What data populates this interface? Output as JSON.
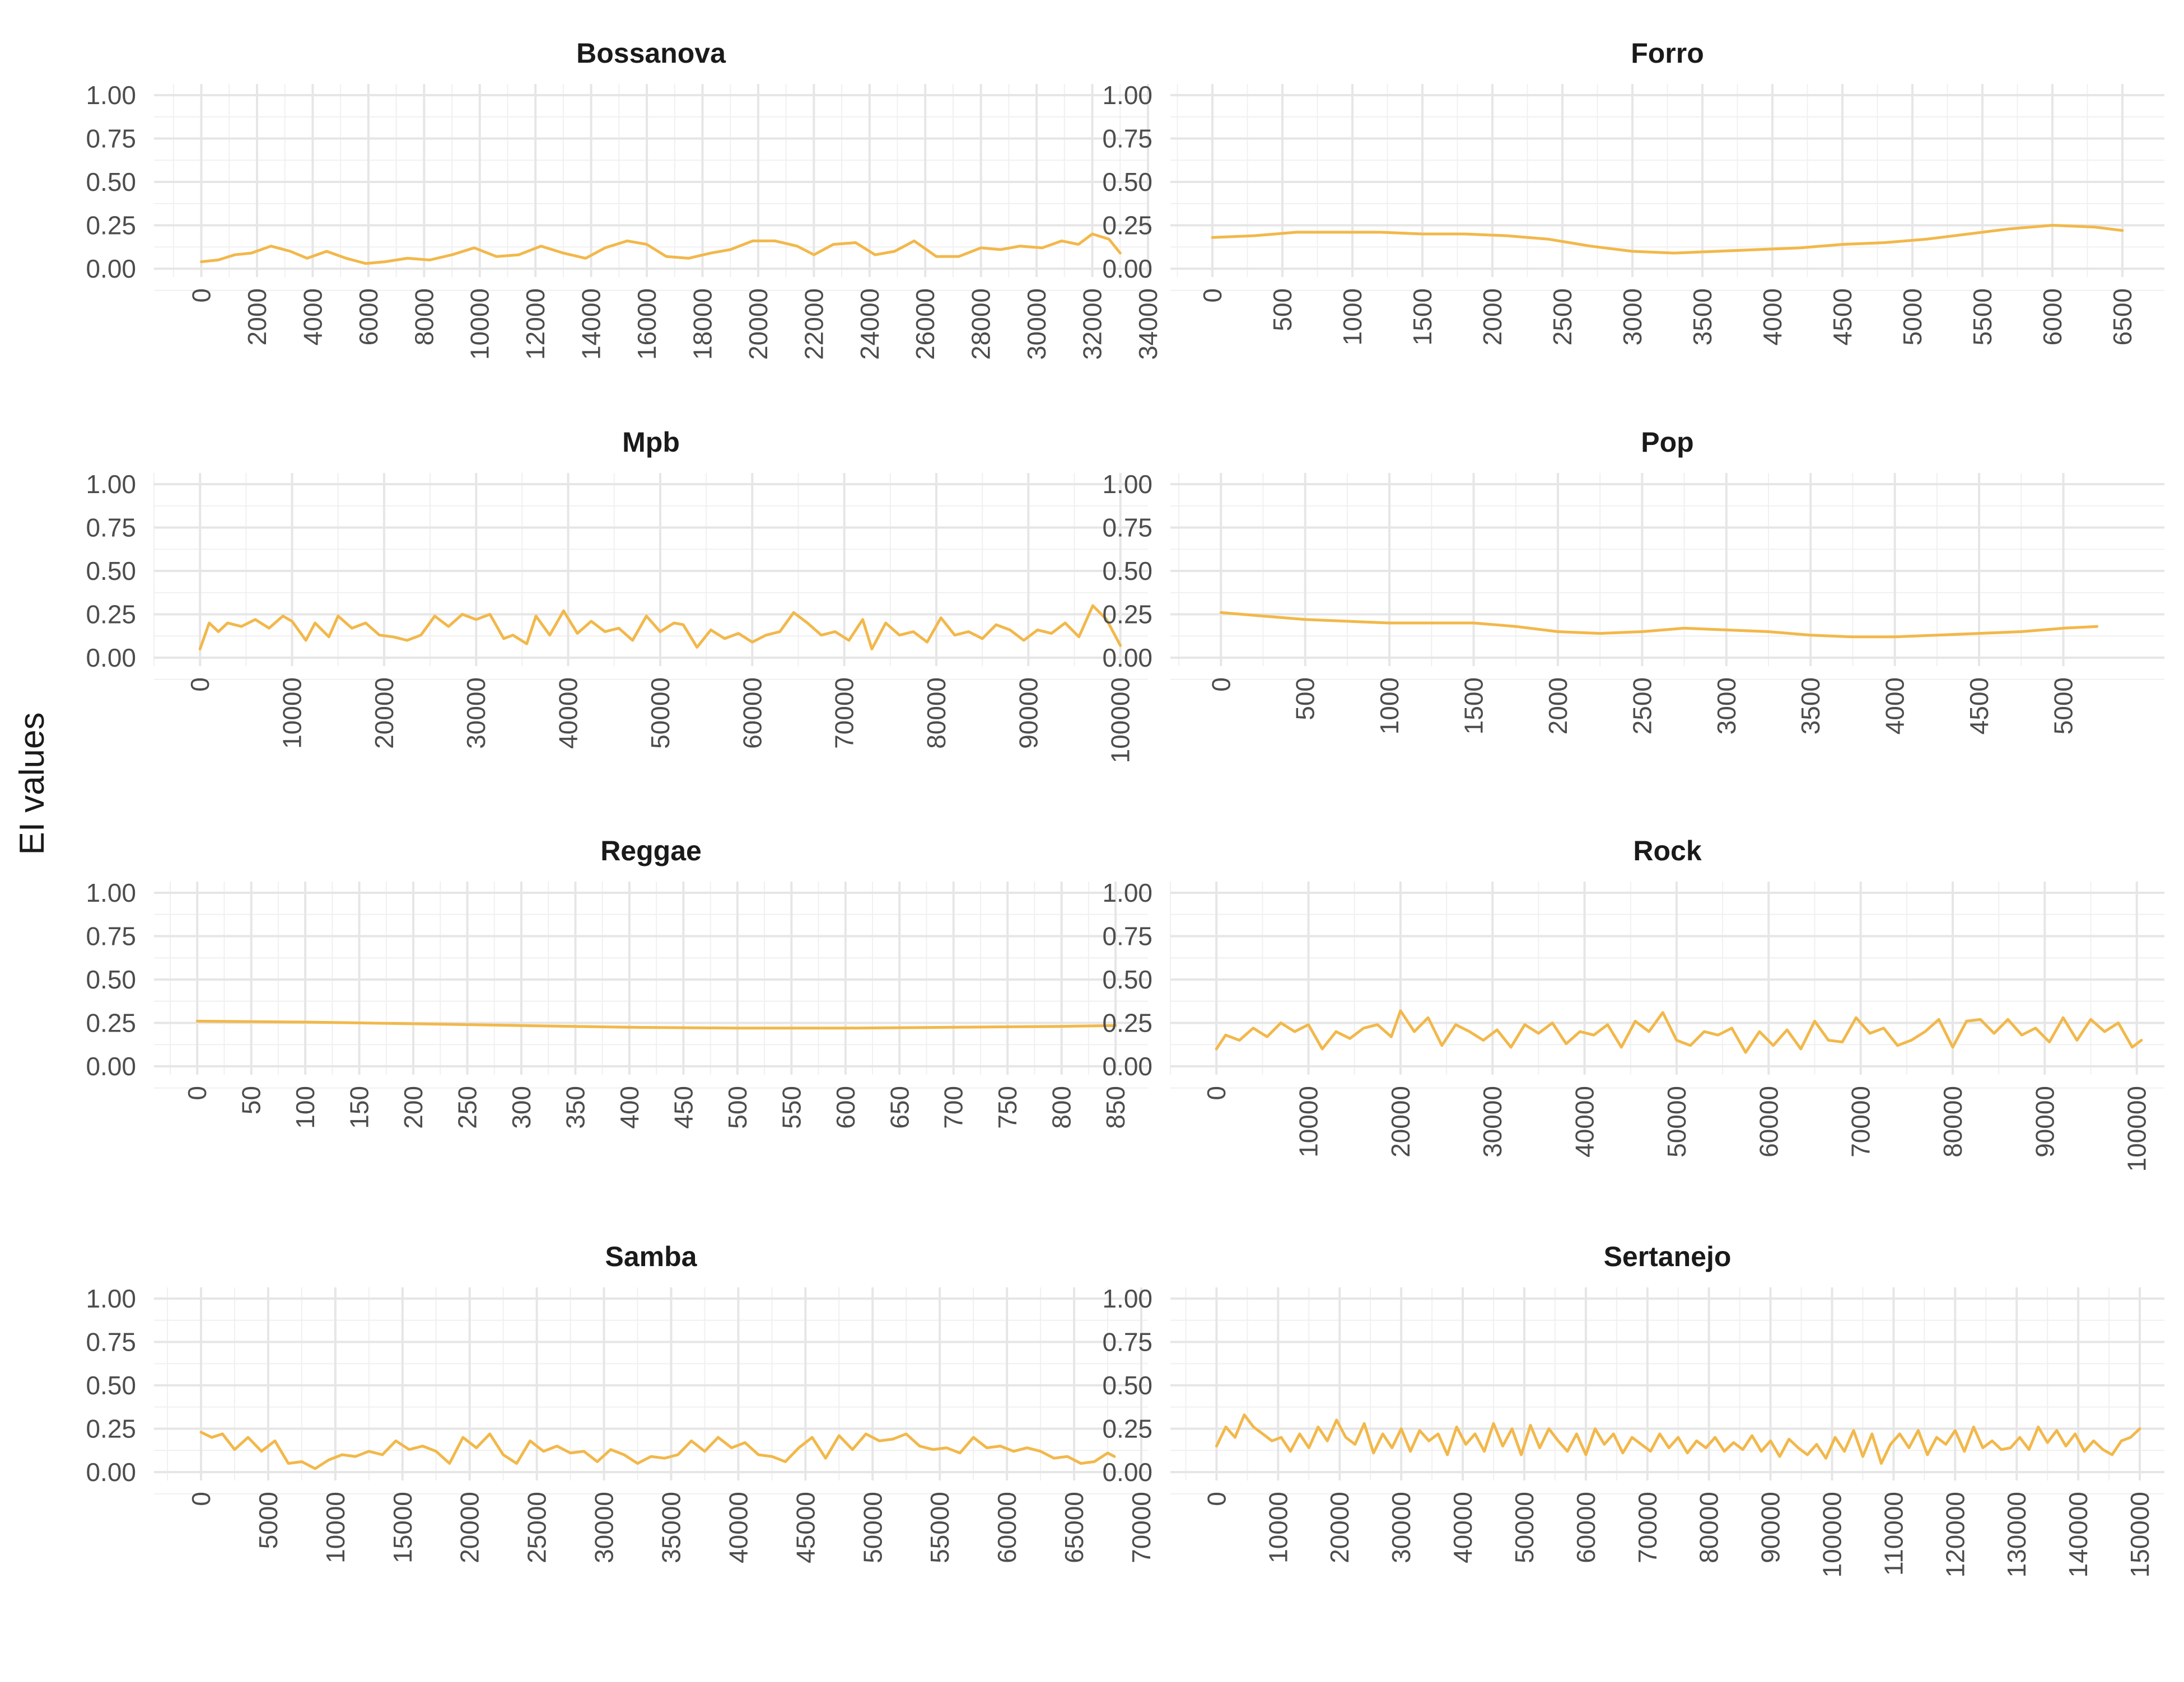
{
  "figure": {
    "ylabel": "EI values",
    "line_color": "#F2B84B",
    "grid_major_color": "#E6E6E6",
    "grid_minor_color": "#F0F0F0",
    "text_color": "#4D4D4D"
  },
  "chart_data": [
    {
      "type": "line",
      "title": "Bossanova",
      "xlim": [
        -1700,
        34000
      ],
      "ylim": [
        0,
        1
      ],
      "x_ticks": [
        0,
        2000,
        4000,
        6000,
        8000,
        10000,
        12000,
        14000,
        16000,
        18000,
        20000,
        22000,
        24000,
        26000,
        28000,
        30000,
        32000,
        34000
      ],
      "y_ticks": [
        0.0,
        0.25,
        0.5,
        0.75,
        1.0
      ],
      "y_tick_labels": [
        "0.00",
        "0.25",
        "0.50",
        "0.75",
        "1.00"
      ],
      "x": [
        0,
        600,
        1200,
        1800,
        2500,
        3200,
        3800,
        4500,
        5200,
        5900,
        6600,
        7400,
        8200,
        9000,
        9800,
        10600,
        11400,
        12200,
        13000,
        13800,
        14500,
        15300,
        16000,
        16700,
        17500,
        18300,
        19000,
        19800,
        20600,
        21400,
        22000,
        22700,
        23500,
        24200,
        24900,
        25600,
        26400,
        27200,
        28000,
        28700,
        29400,
        30200,
        30900,
        31500,
        32000,
        32600,
        33000
      ],
      "y": [
        0.04,
        0.05,
        0.08,
        0.09,
        0.13,
        0.1,
        0.06,
        0.1,
        0.06,
        0.03,
        0.04,
        0.06,
        0.05,
        0.08,
        0.12,
        0.07,
        0.08,
        0.13,
        0.09,
        0.06,
        0.12,
        0.16,
        0.14,
        0.07,
        0.06,
        0.09,
        0.11,
        0.16,
        0.16,
        0.13,
        0.08,
        0.14,
        0.15,
        0.08,
        0.1,
        0.16,
        0.07,
        0.07,
        0.12,
        0.11,
        0.13,
        0.12,
        0.16,
        0.14,
        0.2,
        0.17,
        0.09
      ]
    },
    {
      "type": "line",
      "title": "Forro",
      "xlim": [
        -300,
        6800
      ],
      "ylim": [
        0,
        1
      ],
      "x_ticks": [
        0,
        500,
        1000,
        1500,
        2000,
        2500,
        3000,
        3500,
        4000,
        4500,
        5000,
        5500,
        6000,
        6500
      ],
      "y_ticks": [
        0.0,
        0.25,
        0.5,
        0.75,
        1.0
      ],
      "y_tick_labels": [
        "0.00",
        "0.25",
        "0.50",
        "0.75",
        "1.00"
      ],
      "x": [
        0,
        300,
        600,
        900,
        1200,
        1500,
        1800,
        2100,
        2400,
        2700,
        3000,
        3300,
        3600,
        3900,
        4200,
        4500,
        4800,
        5100,
        5400,
        5700,
        6000,
        6300,
        6500
      ],
      "y": [
        0.18,
        0.19,
        0.21,
        0.21,
        0.21,
        0.2,
        0.2,
        0.19,
        0.17,
        0.13,
        0.1,
        0.09,
        0.1,
        0.11,
        0.12,
        0.14,
        0.15,
        0.17,
        0.2,
        0.23,
        0.25,
        0.24,
        0.22
      ]
    },
    {
      "type": "line",
      "title": "Mpb",
      "xlim": [
        -5000,
        103000
      ],
      "ylim": [
        0,
        1
      ],
      "x_ticks": [
        0,
        10000,
        20000,
        30000,
        40000,
        50000,
        60000,
        70000,
        80000,
        90000,
        100000
      ],
      "y_ticks": [
        0.0,
        0.25,
        0.5,
        0.75,
        1.0
      ],
      "y_tick_labels": [
        "0.00",
        "0.25",
        "0.50",
        "0.75",
        "1.00"
      ],
      "x": [
        0,
        1000,
        2000,
        3000,
        4500,
        6000,
        7500,
        9000,
        10000,
        11500,
        12500,
        14000,
        15000,
        16500,
        18000,
        19500,
        21000,
        22500,
        24000,
        25500,
        27000,
        28500,
        30000,
        31500,
        33000,
        34000,
        35500,
        36500,
        38000,
        39500,
        41000,
        42500,
        44000,
        45500,
        47000,
        48500,
        50000,
        51500,
        52500,
        54000,
        55500,
        57000,
        58500,
        60000,
        61500,
        63000,
        64500,
        66000,
        67500,
        69000,
        70500,
        72000,
        73000,
        74500,
        76000,
        77500,
        79000,
        80500,
        82000,
        83500,
        85000,
        86500,
        88000,
        89500,
        91000,
        92500,
        94000,
        95500,
        97000,
        98500,
        100000
      ],
      "y": [
        0.05,
        0.2,
        0.15,
        0.2,
        0.18,
        0.22,
        0.17,
        0.24,
        0.21,
        0.1,
        0.2,
        0.12,
        0.24,
        0.17,
        0.2,
        0.13,
        0.12,
        0.1,
        0.13,
        0.24,
        0.18,
        0.25,
        0.22,
        0.25,
        0.11,
        0.13,
        0.08,
        0.24,
        0.13,
        0.27,
        0.14,
        0.21,
        0.15,
        0.17,
        0.1,
        0.24,
        0.15,
        0.2,
        0.19,
        0.06,
        0.16,
        0.11,
        0.14,
        0.09,
        0.13,
        0.15,
        0.26,
        0.2,
        0.13,
        0.15,
        0.1,
        0.22,
        0.05,
        0.2,
        0.13,
        0.15,
        0.09,
        0.23,
        0.13,
        0.15,
        0.11,
        0.19,
        0.16,
        0.1,
        0.16,
        0.14,
        0.2,
        0.12,
        0.3,
        0.22,
        0.07
      ]
    },
    {
      "type": "line",
      "title": "Pop",
      "xlim": [
        -300,
        5600
      ],
      "ylim": [
        0,
        1
      ],
      "x_ticks": [
        0,
        500,
        1000,
        1500,
        2000,
        2500,
        3000,
        3500,
        4000,
        4500,
        5000
      ],
      "y_ticks": [
        0.0,
        0.25,
        0.5,
        0.75,
        1.0
      ],
      "y_tick_labels": [
        "0.00",
        "0.25",
        "0.50",
        "0.75",
        "1.00"
      ],
      "x": [
        0,
        250,
        500,
        750,
        1000,
        1250,
        1500,
        1750,
        2000,
        2250,
        2500,
        2750,
        3000,
        3250,
        3500,
        3750,
        4000,
        4250,
        4500,
        4750,
        5000,
        5200
      ],
      "y": [
        0.26,
        0.24,
        0.22,
        0.21,
        0.2,
        0.2,
        0.2,
        0.18,
        0.15,
        0.14,
        0.15,
        0.17,
        0.16,
        0.15,
        0.13,
        0.12,
        0.12,
        0.13,
        0.14,
        0.15,
        0.17,
        0.18
      ]
    },
    {
      "type": "line",
      "title": "Reggae",
      "xlim": [
        -40,
        880
      ],
      "ylim": [
        0,
        1
      ],
      "x_ticks": [
        0,
        50,
        100,
        150,
        200,
        250,
        300,
        350,
        400,
        450,
        500,
        550,
        600,
        650,
        700,
        750,
        800,
        850
      ],
      "y_ticks": [
        0.0,
        0.25,
        0.5,
        0.75,
        1.0
      ],
      "y_tick_labels": [
        "0.00",
        "0.25",
        "0.50",
        "0.75",
        "1.00"
      ],
      "x": [
        0,
        100,
        200,
        300,
        400,
        500,
        600,
        700,
        800,
        850
      ],
      "y": [
        0.26,
        0.255,
        0.245,
        0.235,
        0.225,
        0.22,
        0.22,
        0.225,
        0.23,
        0.235
      ]
    },
    {
      "type": "line",
      "title": "Rock",
      "xlim": [
        -5000,
        103000
      ],
      "ylim": [
        0,
        1
      ],
      "x_ticks": [
        0,
        10000,
        20000,
        30000,
        40000,
        50000,
        60000,
        70000,
        80000,
        90000,
        100000
      ],
      "y_ticks": [
        0.0,
        0.25,
        0.5,
        0.75,
        1.0
      ],
      "y_tick_labels": [
        "0.00",
        "0.25",
        "0.50",
        "0.75",
        "1.00"
      ],
      "x": [
        0,
        1000,
        2500,
        4000,
        5500,
        7000,
        8500,
        10000,
        11500,
        13000,
        14500,
        16000,
        17500,
        19000,
        20000,
        21500,
        23000,
        24500,
        26000,
        27500,
        29000,
        30500,
        32000,
        33500,
        35000,
        36500,
        38000,
        39500,
        41000,
        42500,
        44000,
        45500,
        47000,
        48500,
        50000,
        51500,
        53000,
        54500,
        56000,
        57500,
        59000,
        60500,
        62000,
        63500,
        65000,
        66500,
        68000,
        69500,
        71000,
        72500,
        74000,
        75500,
        77000,
        78500,
        80000,
        81500,
        83000,
        84500,
        86000,
        87500,
        89000,
        90500,
        92000,
        93500,
        95000,
        96500,
        98000,
        99500,
        100500
      ],
      "y": [
        0.1,
        0.18,
        0.15,
        0.22,
        0.17,
        0.25,
        0.2,
        0.24,
        0.1,
        0.2,
        0.16,
        0.22,
        0.24,
        0.17,
        0.32,
        0.2,
        0.28,
        0.12,
        0.24,
        0.2,
        0.15,
        0.21,
        0.11,
        0.24,
        0.19,
        0.25,
        0.13,
        0.2,
        0.18,
        0.24,
        0.11,
        0.26,
        0.2,
        0.31,
        0.15,
        0.12,
        0.2,
        0.18,
        0.22,
        0.08,
        0.2,
        0.12,
        0.21,
        0.1,
        0.26,
        0.15,
        0.14,
        0.28,
        0.19,
        0.22,
        0.12,
        0.15,
        0.2,
        0.27,
        0.11,
        0.26,
        0.27,
        0.19,
        0.27,
        0.18,
        0.22,
        0.14,
        0.28,
        0.15,
        0.27,
        0.2,
        0.25,
        0.11,
        0.15
      ]
    },
    {
      "type": "line",
      "title": "Samba",
      "xlim": [
        -3500,
        70500
      ],
      "ylim": [
        0,
        1
      ],
      "x_ticks": [
        0,
        5000,
        10000,
        15000,
        20000,
        25000,
        30000,
        35000,
        40000,
        45000,
        50000,
        55000,
        60000,
        65000,
        70000
      ],
      "y_ticks": [
        0.0,
        0.25,
        0.5,
        0.75,
        1.0
      ],
      "y_tick_labels": [
        "0.00",
        "0.25",
        "0.50",
        "0.75",
        "1.00"
      ],
      "x": [
        0,
        800,
        1600,
        2500,
        3500,
        4500,
        5500,
        6500,
        7500,
        8500,
        9500,
        10500,
        11500,
        12500,
        13500,
        14500,
        15500,
        16500,
        17500,
        18500,
        19500,
        20500,
        21500,
        22500,
        23500,
        24500,
        25500,
        26500,
        27500,
        28500,
        29500,
        30500,
        31500,
        32500,
        33500,
        34500,
        35500,
        36500,
        37500,
        38500,
        39500,
        40500,
        41500,
        42500,
        43500,
        44500,
        45500,
        46500,
        47500,
        48500,
        49500,
        50500,
        51500,
        52500,
        53500,
        54500,
        55500,
        56500,
        57500,
        58500,
        59500,
        60500,
        61500,
        62500,
        63500,
        64500,
        65500,
        66500,
        67500,
        68000
      ],
      "y": [
        0.23,
        0.2,
        0.22,
        0.13,
        0.2,
        0.12,
        0.18,
        0.05,
        0.06,
        0.02,
        0.07,
        0.1,
        0.09,
        0.12,
        0.1,
        0.18,
        0.13,
        0.15,
        0.12,
        0.05,
        0.2,
        0.14,
        0.22,
        0.1,
        0.05,
        0.18,
        0.12,
        0.15,
        0.11,
        0.12,
        0.06,
        0.13,
        0.1,
        0.05,
        0.09,
        0.08,
        0.1,
        0.18,
        0.12,
        0.2,
        0.14,
        0.17,
        0.1,
        0.09,
        0.06,
        0.14,
        0.2,
        0.08,
        0.21,
        0.13,
        0.22,
        0.18,
        0.19,
        0.22,
        0.15,
        0.13,
        0.14,
        0.11,
        0.2,
        0.14,
        0.15,
        0.12,
        0.14,
        0.12,
        0.08,
        0.09,
        0.05,
        0.06,
        0.11,
        0.09
      ]
    },
    {
      "type": "line",
      "title": "Sertanejo",
      "xlim": [
        -7500,
        154000
      ],
      "ylim": [
        0,
        1
      ],
      "x_ticks": [
        0,
        10000,
        20000,
        30000,
        40000,
        50000,
        60000,
        70000,
        80000,
        90000,
        100000,
        110000,
        120000,
        130000,
        140000,
        150000
      ],
      "y_ticks": [
        0.0,
        0.25,
        0.5,
        0.75,
        1.0
      ],
      "y_tick_labels": [
        "0.00",
        "0.25",
        "0.50",
        "0.75",
        "1.00"
      ],
      "x": [
        0,
        1500,
        3000,
        4500,
        6000,
        7500,
        9000,
        10500,
        12000,
        13500,
        15000,
        16500,
        18000,
        19500,
        21000,
        22500,
        24000,
        25500,
        27000,
        28500,
        30000,
        31500,
        33000,
        34500,
        36000,
        37500,
        39000,
        40500,
        42000,
        43500,
        45000,
        46500,
        48000,
        49500,
        51000,
        52500,
        54000,
        55500,
        57000,
        58500,
        60000,
        61500,
        63000,
        64500,
        66000,
        67500,
        69000,
        70500,
        72000,
        73500,
        75000,
        76500,
        78000,
        79500,
        81000,
        82500,
        84000,
        85500,
        87000,
        88500,
        90000,
        91500,
        93000,
        94500,
        96000,
        97500,
        99000,
        100500,
        102000,
        103500,
        105000,
        106500,
        108000,
        109500,
        111000,
        112500,
        114000,
        115500,
        117000,
        118500,
        120000,
        121500,
        123000,
        124500,
        126000,
        127500,
        129000,
        130500,
        132000,
        133500,
        135000,
        136500,
        138000,
        139500,
        141000,
        142500,
        144000,
        145500,
        147000,
        148500,
        150000
      ],
      "y": [
        0.15,
        0.26,
        0.2,
        0.33,
        0.26,
        0.22,
        0.18,
        0.2,
        0.12,
        0.22,
        0.14,
        0.26,
        0.18,
        0.3,
        0.2,
        0.16,
        0.28,
        0.11,
        0.22,
        0.14,
        0.25,
        0.12,
        0.24,
        0.18,
        0.22,
        0.1,
        0.26,
        0.16,
        0.22,
        0.12,
        0.28,
        0.15,
        0.25,
        0.1,
        0.27,
        0.14,
        0.25,
        0.18,
        0.12,
        0.22,
        0.1,
        0.25,
        0.16,
        0.22,
        0.11,
        0.2,
        0.16,
        0.12,
        0.22,
        0.14,
        0.2,
        0.11,
        0.18,
        0.14,
        0.2,
        0.12,
        0.17,
        0.13,
        0.21,
        0.12,
        0.18,
        0.09,
        0.19,
        0.14,
        0.1,
        0.16,
        0.08,
        0.2,
        0.12,
        0.24,
        0.09,
        0.22,
        0.05,
        0.16,
        0.22,
        0.14,
        0.24,
        0.1,
        0.2,
        0.16,
        0.24,
        0.12,
        0.26,
        0.14,
        0.18,
        0.13,
        0.14,
        0.2,
        0.13,
        0.26,
        0.17,
        0.24,
        0.15,
        0.22,
        0.12,
        0.18,
        0.13,
        0.1,
        0.18,
        0.2,
        0.25
      ]
    }
  ]
}
